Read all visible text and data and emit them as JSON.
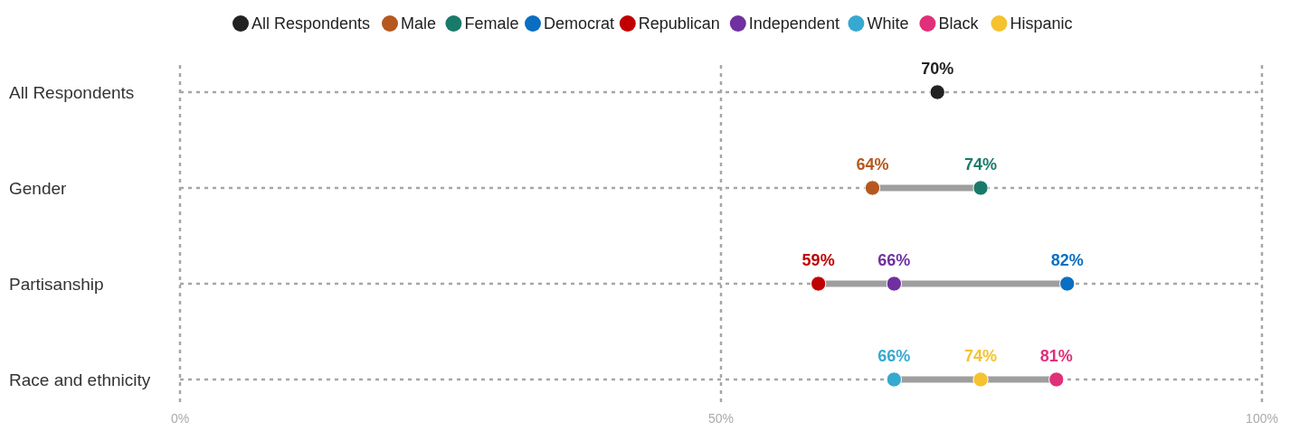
{
  "chart_data": {
    "type": "scatter",
    "orientation": "horizontal",
    "categories": [
      "All Respondents",
      "Gender",
      "Partisanship",
      "Race and ethnicity"
    ],
    "xlim": [
      0,
      100
    ],
    "xticks": [
      {
        "value": 0,
        "label": "0%"
      },
      {
        "value": 50,
        "label": "50%"
      },
      {
        "value": 100,
        "label": "100%"
      }
    ],
    "grid": true,
    "legend": "top",
    "marker": "circle",
    "series": [
      {
        "name": "All Respondents",
        "color": "#222222",
        "values": [
          70,
          null,
          null,
          null
        ],
        "value_labels": [
          "70%",
          null,
          null,
          null
        ]
      },
      {
        "name": "Male",
        "color": "#b5581f",
        "values": [
          null,
          64,
          null,
          null
        ],
        "value_labels": [
          null,
          "64%",
          null,
          null
        ]
      },
      {
        "name": "Female",
        "color": "#1a7a6a",
        "values": [
          null,
          74,
          null,
          null
        ],
        "value_labels": [
          null,
          "74%",
          null,
          null
        ]
      },
      {
        "name": "Democrat",
        "color": "#0a6fc2",
        "values": [
          null,
          null,
          82,
          null
        ],
        "value_labels": [
          null,
          null,
          "82%",
          null
        ]
      },
      {
        "name": "Republican",
        "color": "#c00000",
        "values": [
          null,
          null,
          59,
          null
        ],
        "value_labels": [
          null,
          null,
          "59%",
          null
        ]
      },
      {
        "name": "Independent",
        "color": "#7030a0",
        "values": [
          null,
          null,
          66,
          null
        ],
        "value_labels": [
          null,
          null,
          "66%",
          null
        ]
      },
      {
        "name": "White",
        "color": "#36a9d0",
        "values": [
          null,
          null,
          null,
          66
        ],
        "value_labels": [
          null,
          null,
          null,
          "66%"
        ]
      },
      {
        "name": "Black",
        "color": "#e0307a",
        "values": [
          null,
          null,
          null,
          81
        ],
        "value_labels": [
          null,
          null,
          null,
          "81%"
        ]
      },
      {
        "name": "Hispanic",
        "color": "#f5c230",
        "values": [
          null,
          null,
          null,
          74
        ],
        "value_labels": [
          null,
          null,
          null,
          "74%"
        ]
      }
    ]
  }
}
